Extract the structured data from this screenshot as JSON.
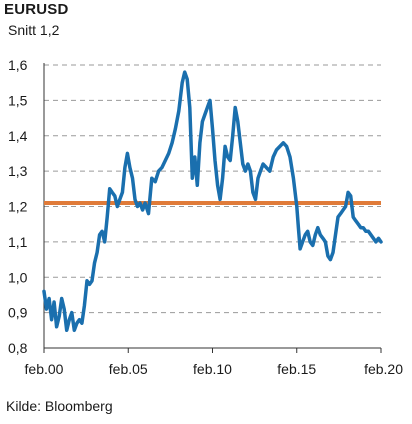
{
  "title": "EURUSD",
  "subtitle": "Snitt 1,2",
  "source": "Kilde: Bloomberg",
  "chart_data": {
    "type": "line",
    "title": "EURUSD",
    "subtitle": "Snitt 1,2",
    "xlabel": "",
    "ylabel": "",
    "ylim": [
      0.8,
      1.6
    ],
    "xlim": [
      2000.0,
      2020.0
    ],
    "yticks": [
      0.8,
      0.9,
      1.0,
      1.1,
      1.2,
      1.3,
      1.4,
      1.5,
      1.6
    ],
    "ytick_labels": [
      "0,8",
      "0,9",
      "1,0",
      "1,1",
      "1,2",
      "1,3",
      "1,4",
      "1,5",
      "1,6"
    ],
    "xticks": [
      2000,
      2005,
      2010,
      2015,
      2020
    ],
    "xtick_labels": [
      "feb.00",
      "feb.05",
      "feb.10",
      "feb.15",
      "feb.20"
    ],
    "grid": "horizontal dashed",
    "colors": {
      "series": "#1a6fae",
      "average": "#e07b39",
      "grid": "#9a9a9a",
      "axis": "#333333"
    },
    "reference_lines": [
      {
        "value": 1.21
      }
    ],
    "series": [
      {
        "x": [
          2000.0,
          2000.15,
          2000.3,
          2000.45,
          2000.6,
          2000.75,
          2000.9,
          2001.05,
          2001.2,
          2001.35,
          2001.5,
          2001.65,
          2001.8,
          2001.95,
          2002.1,
          2002.25,
          2002.4,
          2002.55,
          2002.7,
          2002.85,
          2003.0,
          2003.15,
          2003.3,
          2003.45,
          2003.6,
          2003.75,
          2003.9,
          2004.05,
          2004.2,
          2004.35,
          2004.5,
          2004.65,
          2004.8,
          2004.95,
          2005.1,
          2005.25,
          2005.4,
          2005.55,
          2005.7,
          2005.85,
          2006.0,
          2006.2,
          2006.4,
          2006.6,
          2006.8,
          2007.0,
          2007.2,
          2007.4,
          2007.6,
          2007.8,
          2008.0,
          2008.2,
          2008.35,
          2008.5,
          2008.65,
          2008.8,
          2008.95,
          2009.1,
          2009.25,
          2009.4,
          2009.55,
          2009.7,
          2009.85,
          2010.0,
          2010.15,
          2010.3,
          2010.45,
          2010.6,
          2010.75,
          2010.9,
          2011.05,
          2011.2,
          2011.35,
          2011.5,
          2011.65,
          2011.8,
          2011.95,
          2012.1,
          2012.25,
          2012.4,
          2012.55,
          2012.7,
          2012.85,
          2013.0,
          2013.2,
          2013.4,
          2013.6,
          2013.8,
          2014.0,
          2014.2,
          2014.4,
          2014.6,
          2014.8,
          2015.0,
          2015.1,
          2015.2,
          2015.35,
          2015.5,
          2015.65,
          2015.8,
          2015.95,
          2016.1,
          2016.25,
          2016.4,
          2016.55,
          2016.7,
          2016.85,
          2017.0,
          2017.15,
          2017.3,
          2017.45,
          2017.6,
          2017.75,
          2017.9,
          2018.05,
          2018.2,
          2018.35,
          2018.5,
          2018.65,
          2018.8,
          2018.95,
          2019.1,
          2019.25,
          2019.4,
          2019.55,
          2019.7,
          2019.85,
          2020.0
        ],
        "values": [
          0.96,
          0.91,
          0.94,
          0.88,
          0.93,
          0.86,
          0.89,
          0.94,
          0.91,
          0.85,
          0.88,
          0.9,
          0.85,
          0.87,
          0.88,
          0.87,
          0.92,
          0.99,
          0.98,
          0.99,
          1.04,
          1.07,
          1.12,
          1.13,
          1.1,
          1.17,
          1.25,
          1.24,
          1.23,
          1.2,
          1.22,
          1.24,
          1.31,
          1.35,
          1.31,
          1.28,
          1.22,
          1.2,
          1.21,
          1.19,
          1.21,
          1.18,
          1.28,
          1.27,
          1.3,
          1.31,
          1.33,
          1.35,
          1.38,
          1.42,
          1.47,
          1.55,
          1.58,
          1.56,
          1.48,
          1.28,
          1.34,
          1.26,
          1.38,
          1.44,
          1.46,
          1.48,
          1.5,
          1.42,
          1.33,
          1.26,
          1.22,
          1.28,
          1.37,
          1.34,
          1.33,
          1.4,
          1.48,
          1.44,
          1.38,
          1.32,
          1.3,
          1.32,
          1.3,
          1.24,
          1.22,
          1.28,
          1.3,
          1.32,
          1.31,
          1.3,
          1.34,
          1.36,
          1.37,
          1.38,
          1.37,
          1.34,
          1.28,
          1.2,
          1.14,
          1.08,
          1.1,
          1.12,
          1.13,
          1.1,
          1.09,
          1.12,
          1.14,
          1.12,
          1.11,
          1.1,
          1.06,
          1.05,
          1.07,
          1.12,
          1.17,
          1.18,
          1.19,
          1.2,
          1.24,
          1.23,
          1.17,
          1.16,
          1.15,
          1.14,
          1.14,
          1.13,
          1.13,
          1.12,
          1.11,
          1.1,
          1.11,
          1.1
        ]
      }
    ]
  }
}
